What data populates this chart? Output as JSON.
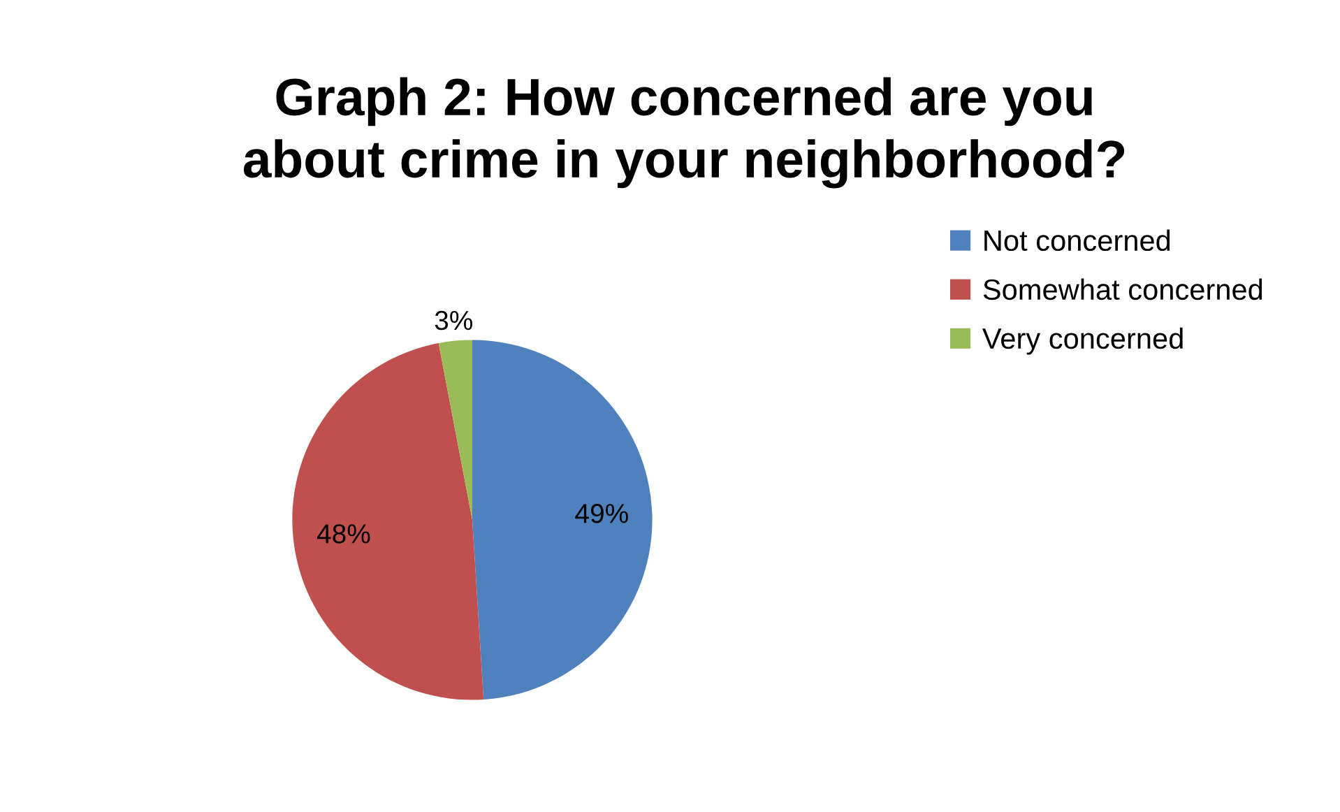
{
  "chart_data": {
    "type": "pie",
    "title": "Graph 2: How concerned are you\nabout crime in your neighborhood?",
    "categories": [
      "Not concerned",
      "Somewhat concerned",
      "Very concerned"
    ],
    "values": [
      49,
      48,
      3
    ],
    "colors": [
      "#4f81bd",
      "#c0504d",
      "#9bbb59"
    ],
    "value_labels": [
      "49%",
      "48%",
      "3%"
    ],
    "legend": "right"
  }
}
